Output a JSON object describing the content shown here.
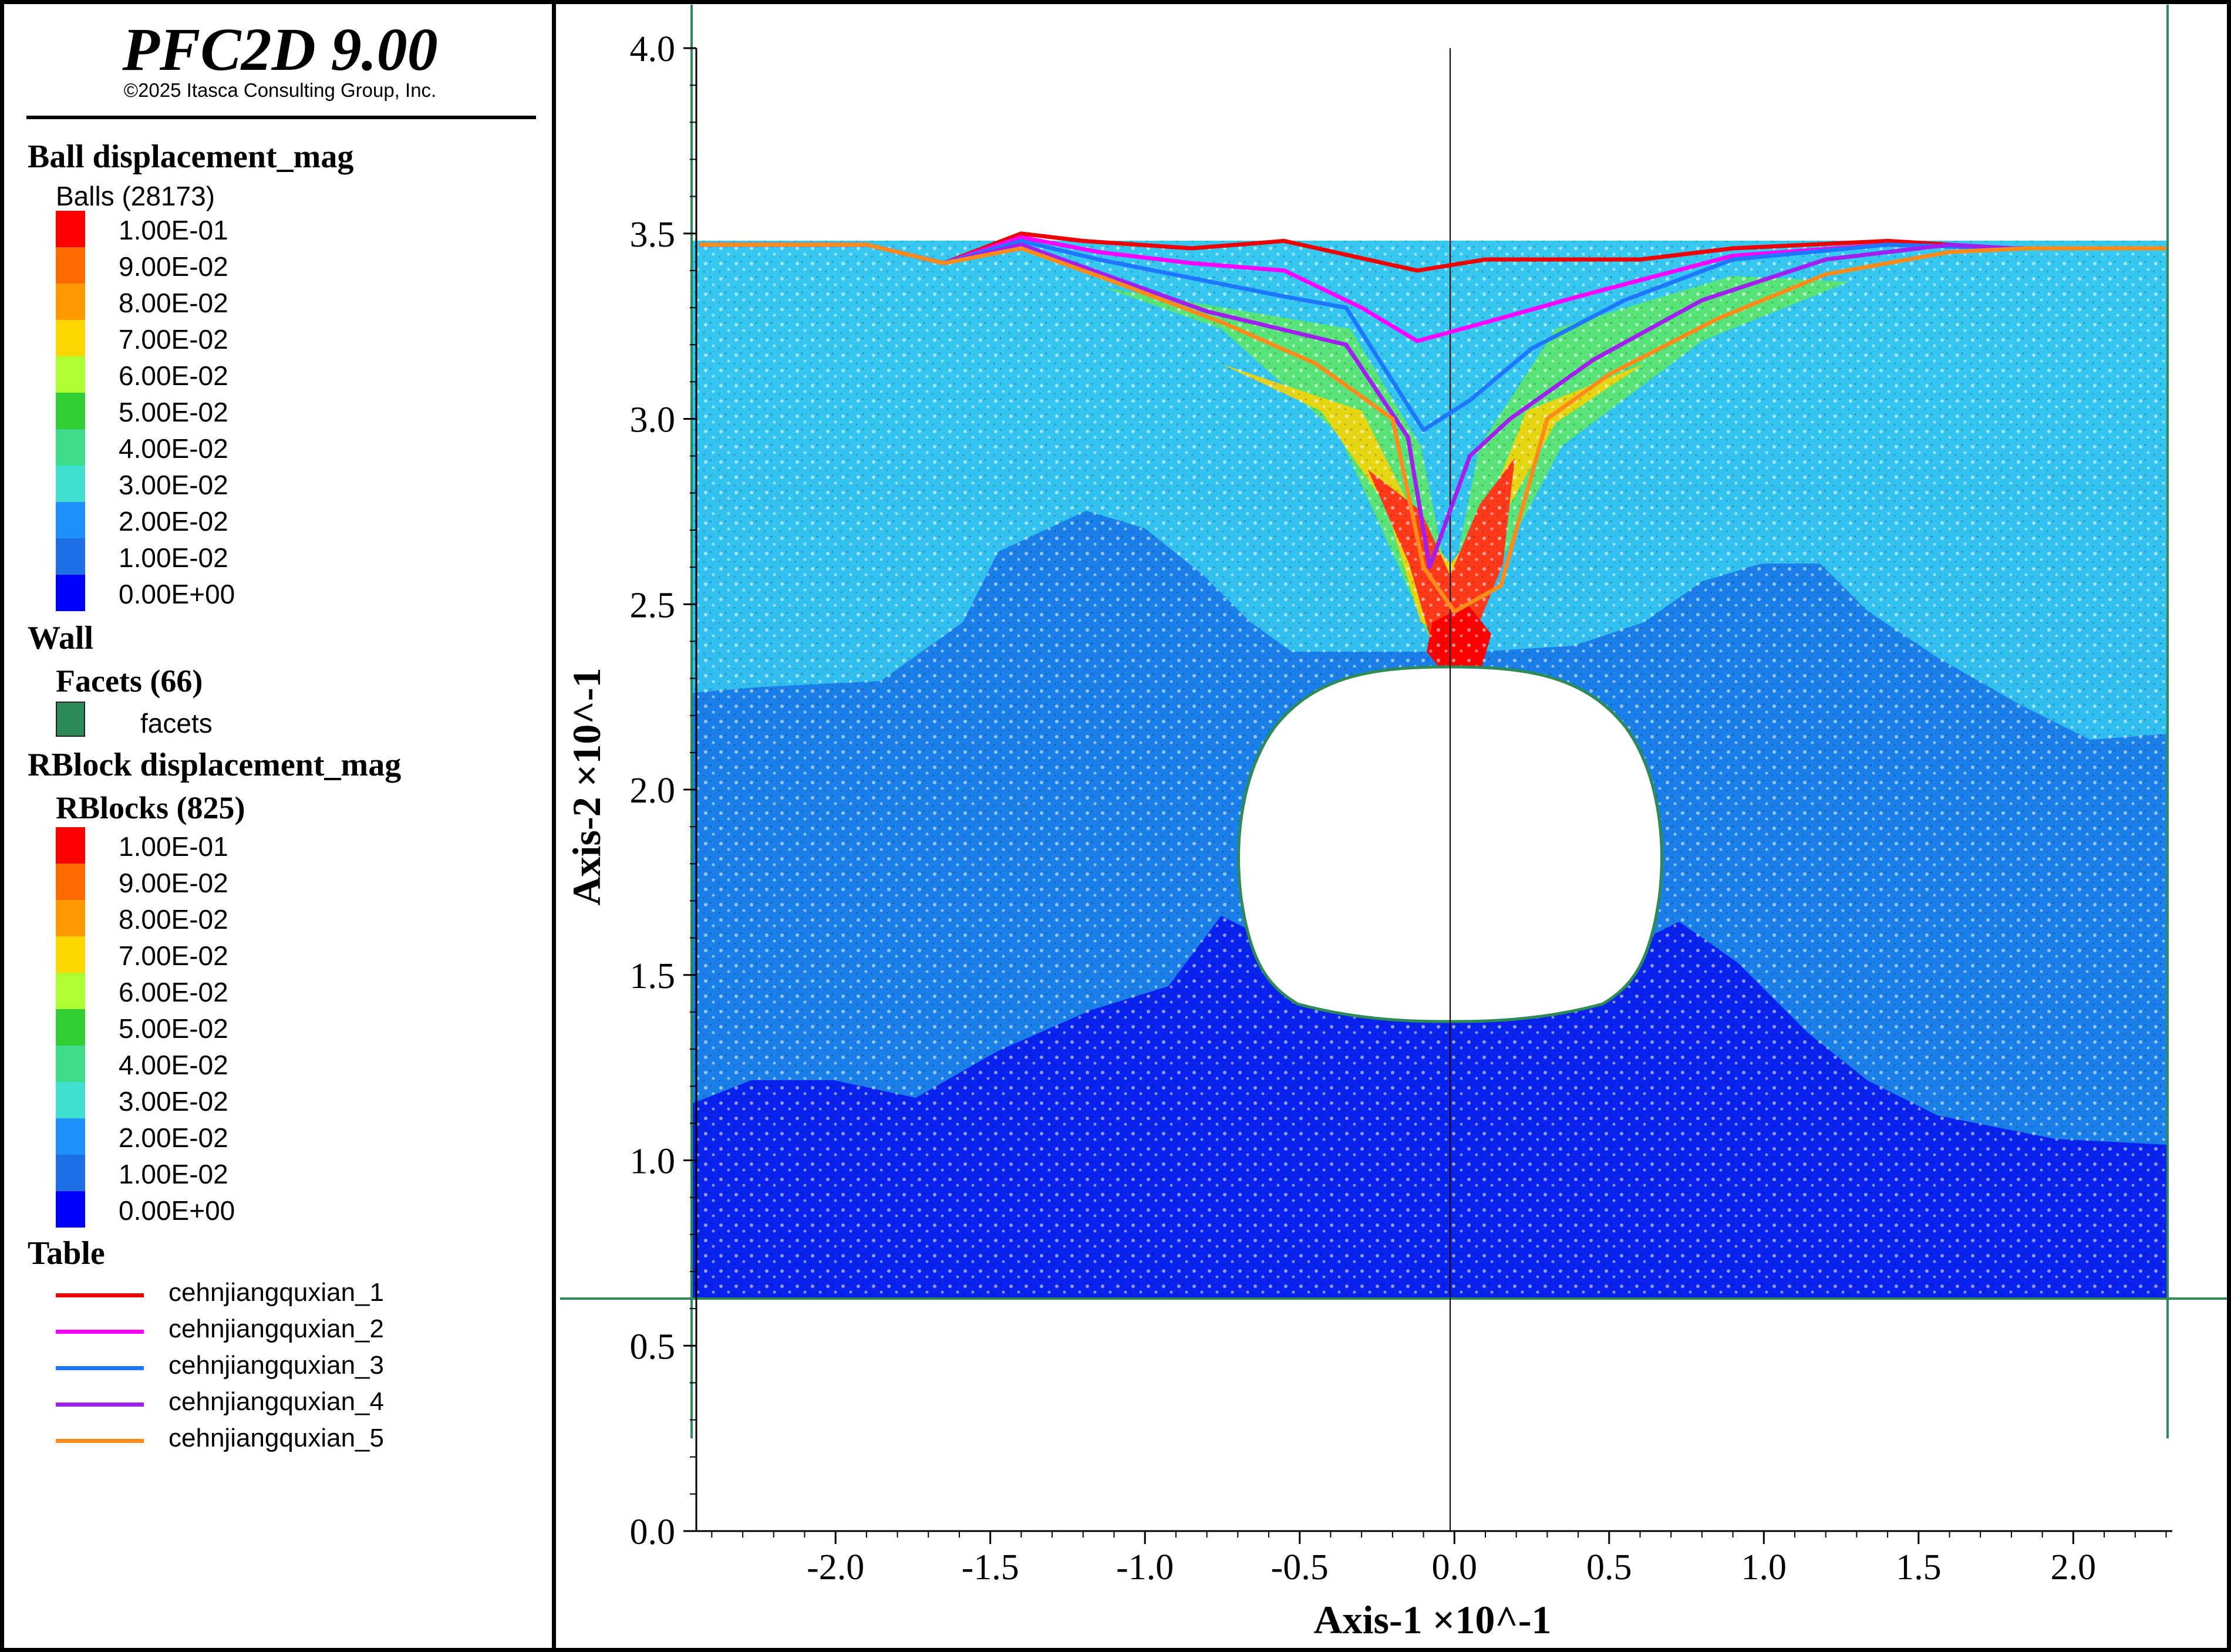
{
  "app": {
    "title": "PFC2D 9.00",
    "copyright": "©2025 Itasca Consulting Group, Inc."
  },
  "legend": {
    "ball_group": {
      "title": "Ball displacement_mag",
      "count_label": "Balls (28173)"
    },
    "wall_group": {
      "title": "Wall",
      "facets_label": "Facets (66)",
      "facets_item": "facets",
      "facets_color": "#2e8b57"
    },
    "rblock_group": {
      "title": "RBlock displacement_mag",
      "count_label": "RBlocks (825)"
    },
    "scale": [
      {
        "label": "1.00E-01",
        "color": "#ff0000"
      },
      {
        "label": "9.00E-02",
        "color": "#ff6a00"
      },
      {
        "label": "8.00E-02",
        "color": "#ff9900"
      },
      {
        "label": "7.00E-02",
        "color": "#ffd700"
      },
      {
        "label": "6.00E-02",
        "color": "#adff2f"
      },
      {
        "label": "5.00E-02",
        "color": "#32cd32"
      },
      {
        "label": "4.00E-02",
        "color": "#3cdc8a"
      },
      {
        "label": "3.00E-02",
        "color": "#40e0d0"
      },
      {
        "label": "2.00E-02",
        "color": "#1e90ff"
      },
      {
        "label": "1.00E-02",
        "color": "#1e6ee8"
      },
      {
        "label": "0.00E+00",
        "color": "#0000ff"
      }
    ],
    "table_group": {
      "title": "Table"
    }
  },
  "chart_data": {
    "type": "line",
    "xlabel": "Axis-1 ×10^-1",
    "ylabel": "Axis-2 ×10^-1",
    "xlim": [
      -2.45,
      2.32
    ],
    "ylim": [
      0.0,
      4.0
    ],
    "x_ticks": [
      "-2.0",
      "-1.5",
      "-1.0",
      "-0.5",
      "0.0",
      "0.5",
      "1.0",
      "1.5",
      "2.0"
    ],
    "x_tick_values": [
      -2.0,
      -1.5,
      -1.0,
      -0.5,
      0.0,
      0.5,
      1.0,
      1.5,
      2.0
    ],
    "y_ticks": [
      "0.0",
      "0.5",
      "1.0",
      "1.5",
      "2.0",
      "2.5",
      "3.0",
      "3.5",
      "4.0"
    ],
    "y_tick_values": [
      0.0,
      0.5,
      1.0,
      1.5,
      2.0,
      2.5,
      3.0,
      3.5,
      4.0
    ],
    "model_domain": {
      "x": [
        -2.44,
        2.3
      ],
      "y": [
        0.63,
        3.47
      ]
    },
    "tunnel": {
      "center_x": 0.0,
      "crown_y": 2.33,
      "invert_y": 1.37,
      "half_width": 0.69,
      "springline_y": 1.82
    },
    "series": [
      {
        "name": "cehnjiangquxian_1",
        "color": "#ee0000",
        "x": [
          -2.44,
          -1.9,
          -1.65,
          -1.4,
          -1.2,
          -0.85,
          -0.55,
          -0.12,
          0.1,
          0.6,
          0.9,
          1.4,
          1.8,
          2.3
        ],
        "y": [
          3.47,
          3.47,
          3.42,
          3.5,
          3.48,
          3.46,
          3.48,
          3.4,
          3.43,
          3.43,
          3.46,
          3.48,
          3.46,
          3.46
        ]
      },
      {
        "name": "cehnjiangquxian_2",
        "color": "#ff00ff",
        "x": [
          -2.44,
          -1.9,
          -1.65,
          -1.4,
          -1.15,
          -0.85,
          -0.55,
          -0.3,
          -0.12,
          0.1,
          0.4,
          0.9,
          1.4,
          1.8,
          2.3
        ],
        "y": [
          3.47,
          3.47,
          3.42,
          3.49,
          3.45,
          3.42,
          3.4,
          3.3,
          3.21,
          3.26,
          3.33,
          3.44,
          3.47,
          3.46,
          3.46
        ]
      },
      {
        "name": "cehnjiangquxian_3",
        "color": "#1e78ff",
        "x": [
          -2.44,
          -1.9,
          -1.65,
          -1.4,
          -1.15,
          -0.85,
          -0.55,
          -0.35,
          -0.1,
          0.05,
          0.25,
          0.55,
          0.9,
          1.4,
          1.8,
          2.3
        ],
        "y": [
          3.47,
          3.47,
          3.42,
          3.48,
          3.43,
          3.38,
          3.33,
          3.3,
          2.97,
          3.05,
          3.19,
          3.32,
          3.43,
          3.47,
          3.46,
          3.46
        ]
      },
      {
        "name": "cehnjiangquxian_4",
        "color": "#a020f0",
        "x": [
          -2.44,
          -1.9,
          -1.65,
          -1.4,
          -1.1,
          -0.8,
          -0.45,
          -0.35,
          -0.15,
          -0.08,
          0.05,
          0.18,
          0.45,
          0.8,
          1.2,
          1.6,
          1.8,
          2.3
        ],
        "y": [
          3.47,
          3.47,
          3.42,
          3.47,
          3.38,
          3.29,
          3.22,
          3.2,
          2.95,
          2.6,
          2.9,
          3.0,
          3.16,
          3.32,
          3.43,
          3.47,
          3.46,
          3.46
        ]
      },
      {
        "name": "cehnjiangquxian_5",
        "color": "#ff8c1a",
        "x": [
          -2.44,
          -1.9,
          -1.65,
          -1.4,
          -1.1,
          -0.75,
          -0.45,
          -0.2,
          -0.1,
          0.0,
          0.15,
          0.3,
          0.5,
          0.85,
          1.2,
          1.6,
          1.85,
          2.3
        ],
        "y": [
          3.47,
          3.47,
          3.42,
          3.46,
          3.37,
          3.26,
          3.15,
          3.0,
          2.6,
          2.48,
          2.55,
          3.0,
          3.12,
          3.27,
          3.39,
          3.45,
          3.46,
          3.46
        ]
      }
    ]
  }
}
